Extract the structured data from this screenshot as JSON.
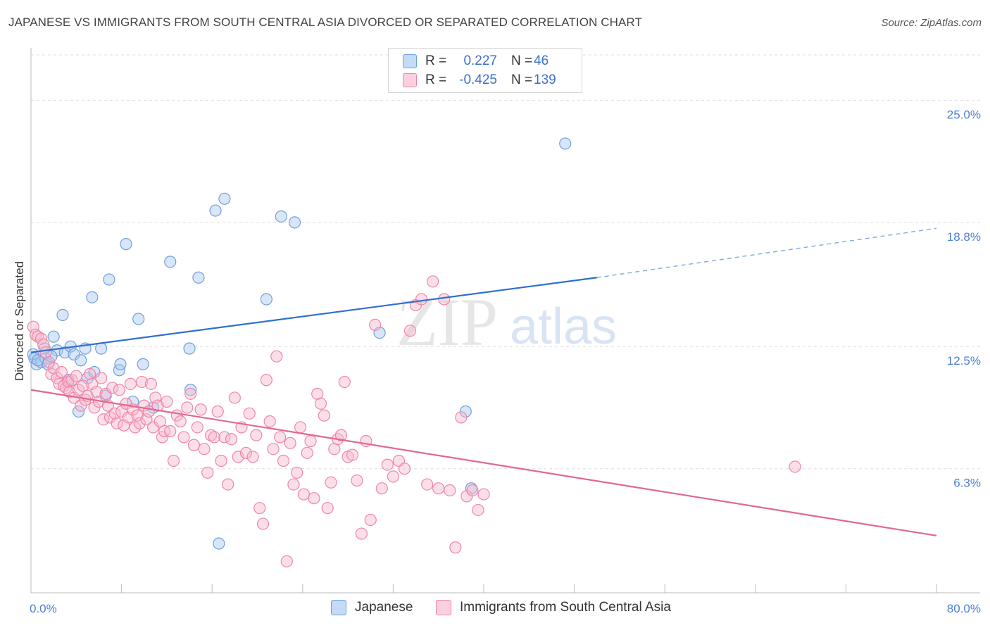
{
  "header": {
    "title": "JAPANESE VS IMMIGRANTS FROM SOUTH CENTRAL ASIA DIVORCED OR SEPARATED CORRELATION CHART",
    "source": "Source: ZipAtlas.com"
  },
  "watermark": {
    "zip": "ZIP",
    "atlas": "atlas"
  },
  "legend": {
    "rows": [
      {
        "r_label": "R =",
        "r_value": "0.227",
        "n_label": "N =",
        "n_value": "46",
        "color": "#a9c8f0"
      },
      {
        "r_label": "R =",
        "r_value": "-0.425",
        "n_label": "N =",
        "n_value": "139",
        "color": "#f7b9cd"
      }
    ]
  },
  "bottom_legend": {
    "items": [
      {
        "label": "Japanese",
        "color": "#a9c8f0"
      },
      {
        "label": "Immigrants from South Central Asia",
        "color": "#f7b9cd"
      }
    ]
  },
  "chart_data": {
    "type": "scatter",
    "title": "JAPANESE VS IMMIGRANTS FROM SOUTH CENTRAL ASIA DIVORCED OR SEPARATED CORRELATION CHART",
    "ylabel": "Divorced or Separated",
    "xlabel": "",
    "xlim": [
      0,
      80
    ],
    "ylim": [
      0,
      27.3
    ],
    "x_tick_labels": [
      "0.0%",
      "80.0%"
    ],
    "y_ticks": [
      {
        "value": 6.3,
        "label": "6.3%"
      },
      {
        "value": 12.5,
        "label": "12.5%"
      },
      {
        "value": 18.8,
        "label": "18.8%"
      },
      {
        "value": 25.0,
        "label": "25.0%"
      }
    ],
    "grid": true,
    "legend_position": "top-center",
    "series": [
      {
        "name": "Japanese",
        "color": "#6fa0e0",
        "fill": "#a9c8f0",
        "points": [
          [
            0.2,
            12.1
          ],
          [
            0.3,
            11.9
          ],
          [
            0.5,
            11.6
          ],
          [
            0.9,
            11.7
          ],
          [
            1.2,
            12.4
          ],
          [
            1.3,
            11.9
          ],
          [
            1.5,
            11.6
          ],
          [
            2.0,
            13.0
          ],
          [
            2.3,
            12.3
          ],
          [
            2.8,
            14.1
          ],
          [
            3.0,
            12.2
          ],
          [
            3.5,
            12.5
          ],
          [
            3.8,
            12.1
          ],
          [
            4.4,
            11.8
          ],
          [
            4.8,
            12.4
          ],
          [
            5.0,
            10.9
          ],
          [
            5.4,
            15.0
          ],
          [
            5.6,
            11.2
          ],
          [
            4.2,
            9.2
          ],
          [
            6.2,
            12.4
          ],
          [
            6.9,
            15.9
          ],
          [
            6.6,
            10.0
          ],
          [
            7.8,
            11.3
          ],
          [
            8.4,
            17.7
          ],
          [
            9.0,
            9.7
          ],
          [
            9.5,
            13.9
          ],
          [
            9.9,
            11.6
          ],
          [
            10.8,
            9.4
          ],
          [
            12.3,
            16.8
          ],
          [
            14.0,
            12.4
          ],
          [
            14.1,
            10.3
          ],
          [
            14.8,
            16.0
          ],
          [
            16.3,
            19.4
          ],
          [
            17.1,
            20.0
          ],
          [
            16.6,
            2.5
          ],
          [
            20.8,
            14.9
          ],
          [
            22.1,
            19.1
          ],
          [
            23.3,
            18.8
          ],
          [
            30.8,
            13.2
          ],
          [
            38.9,
            5.3
          ],
          [
            38.4,
            9.2
          ],
          [
            47.2,
            22.8
          ],
          [
            0.6,
            11.8
          ],
          [
            1.8,
            12.0
          ],
          [
            3.3,
            10.8
          ],
          [
            7.9,
            11.6
          ]
        ],
        "trend": {
          "x": [
            0,
            50,
            80
          ],
          "y": [
            12.2,
            16.0,
            18.5
          ],
          "solid_until": 50
        }
      },
      {
        "name": "Immigrants from South Central Asia",
        "color": "#ee86a8",
        "fill": "#f7b9cd",
        "points": [
          [
            0.2,
            13.5
          ],
          [
            0.4,
            13.1
          ],
          [
            0.6,
            13.0
          ],
          [
            0.9,
            12.9
          ],
          [
            1.1,
            12.6
          ],
          [
            1.3,
            12.2
          ],
          [
            1.6,
            11.7
          ],
          [
            1.8,
            11.1
          ],
          [
            2.0,
            11.4
          ],
          [
            2.3,
            10.9
          ],
          [
            2.5,
            10.6
          ],
          [
            2.7,
            11.2
          ],
          [
            2.9,
            10.5
          ],
          [
            3.1,
            10.4
          ],
          [
            3.3,
            10.7
          ],
          [
            3.4,
            10.2
          ],
          [
            3.6,
            10.8
          ],
          [
            3.8,
            9.9
          ],
          [
            4.0,
            11.0
          ],
          [
            4.2,
            10.3
          ],
          [
            4.4,
            9.5
          ],
          [
            4.6,
            10.5
          ],
          [
            4.8,
            9.8
          ],
          [
            5.0,
            10.0
          ],
          [
            5.2,
            11.1
          ],
          [
            5.4,
            10.6
          ],
          [
            5.6,
            9.4
          ],
          [
            5.8,
            10.2
          ],
          [
            6.0,
            9.7
          ],
          [
            6.2,
            10.9
          ],
          [
            6.4,
            8.8
          ],
          [
            6.6,
            10.1
          ],
          [
            6.8,
            9.5
          ],
          [
            7.0,
            8.9
          ],
          [
            7.2,
            10.4
          ],
          [
            7.4,
            9.1
          ],
          [
            7.6,
            8.6
          ],
          [
            7.8,
            10.3
          ],
          [
            8.0,
            9.2
          ],
          [
            8.2,
            8.5
          ],
          [
            8.4,
            9.6
          ],
          [
            8.6,
            8.9
          ],
          [
            8.8,
            10.6
          ],
          [
            9.0,
            9.3
          ],
          [
            9.2,
            8.4
          ],
          [
            9.4,
            9.0
          ],
          [
            9.6,
            8.6
          ],
          [
            9.8,
            10.7
          ],
          [
            10.0,
            9.5
          ],
          [
            10.2,
            8.8
          ],
          [
            10.4,
            9.2
          ],
          [
            10.6,
            10.6
          ],
          [
            10.8,
            8.4
          ],
          [
            11.0,
            9.9
          ],
          [
            11.2,
            9.5
          ],
          [
            11.4,
            8.7
          ],
          [
            11.6,
            7.9
          ],
          [
            11.8,
            8.2
          ],
          [
            12.0,
            9.7
          ],
          [
            12.3,
            8.2
          ],
          [
            12.6,
            6.7
          ],
          [
            12.9,
            9.0
          ],
          [
            13.2,
            8.7
          ],
          [
            13.5,
            7.9
          ],
          [
            13.8,
            9.4
          ],
          [
            14.1,
            10.1
          ],
          [
            14.4,
            7.5
          ],
          [
            14.7,
            8.4
          ],
          [
            15.0,
            9.3
          ],
          [
            15.3,
            7.3
          ],
          [
            15.6,
            6.1
          ],
          [
            15.9,
            8.0
          ],
          [
            16.2,
            7.9
          ],
          [
            16.5,
            9.2
          ],
          [
            16.8,
            6.7
          ],
          [
            17.1,
            7.9
          ],
          [
            17.4,
            5.5
          ],
          [
            17.7,
            7.8
          ],
          [
            18.0,
            9.9
          ],
          [
            18.3,
            6.9
          ],
          [
            18.6,
            8.4
          ],
          [
            19.0,
            7.1
          ],
          [
            19.3,
            9.1
          ],
          [
            19.6,
            6.9
          ],
          [
            19.9,
            8.0
          ],
          [
            20.2,
            4.3
          ],
          [
            20.5,
            3.5
          ],
          [
            20.8,
            10.8
          ],
          [
            21.1,
            8.7
          ],
          [
            21.4,
            7.3
          ],
          [
            21.7,
            12.0
          ],
          [
            22.0,
            7.9
          ],
          [
            22.3,
            6.7
          ],
          [
            22.6,
            1.6
          ],
          [
            22.9,
            7.6
          ],
          [
            23.2,
            5.5
          ],
          [
            23.5,
            6.1
          ],
          [
            23.8,
            8.4
          ],
          [
            24.1,
            5.0
          ],
          [
            24.4,
            7.1
          ],
          [
            24.7,
            7.7
          ],
          [
            25.0,
            4.8
          ],
          [
            25.3,
            10.1
          ],
          [
            25.6,
            9.6
          ],
          [
            25.9,
            9.0
          ],
          [
            26.2,
            4.3
          ],
          [
            26.5,
            5.6
          ],
          [
            26.8,
            7.3
          ],
          [
            27.1,
            7.8
          ],
          [
            27.4,
            8.0
          ],
          [
            27.7,
            10.7
          ],
          [
            28.0,
            6.9
          ],
          [
            28.4,
            7.0
          ],
          [
            28.8,
            5.7
          ],
          [
            29.2,
            3.0
          ],
          [
            29.6,
            7.7
          ],
          [
            30.0,
            3.7
          ],
          [
            30.4,
            13.6
          ],
          [
            31.0,
            5.3
          ],
          [
            31.5,
            6.5
          ],
          [
            32.0,
            5.9
          ],
          [
            32.5,
            6.7
          ],
          [
            33.0,
            6.3
          ],
          [
            33.5,
            13.3
          ],
          [
            34.0,
            14.6
          ],
          [
            34.5,
            14.9
          ],
          [
            35.0,
            5.5
          ],
          [
            35.5,
            15.8
          ],
          [
            36.0,
            5.3
          ],
          [
            36.5,
            14.9
          ],
          [
            37.0,
            5.2
          ],
          [
            37.5,
            2.3
          ],
          [
            38.0,
            8.9
          ],
          [
            38.5,
            4.9
          ],
          [
            39.0,
            5.2
          ],
          [
            39.5,
            4.2
          ],
          [
            40.0,
            5.0
          ],
          [
            67.5,
            6.4
          ]
        ],
        "trend": {
          "x": [
            0,
            80
          ],
          "y": [
            10.3,
            2.9
          ]
        }
      }
    ]
  }
}
